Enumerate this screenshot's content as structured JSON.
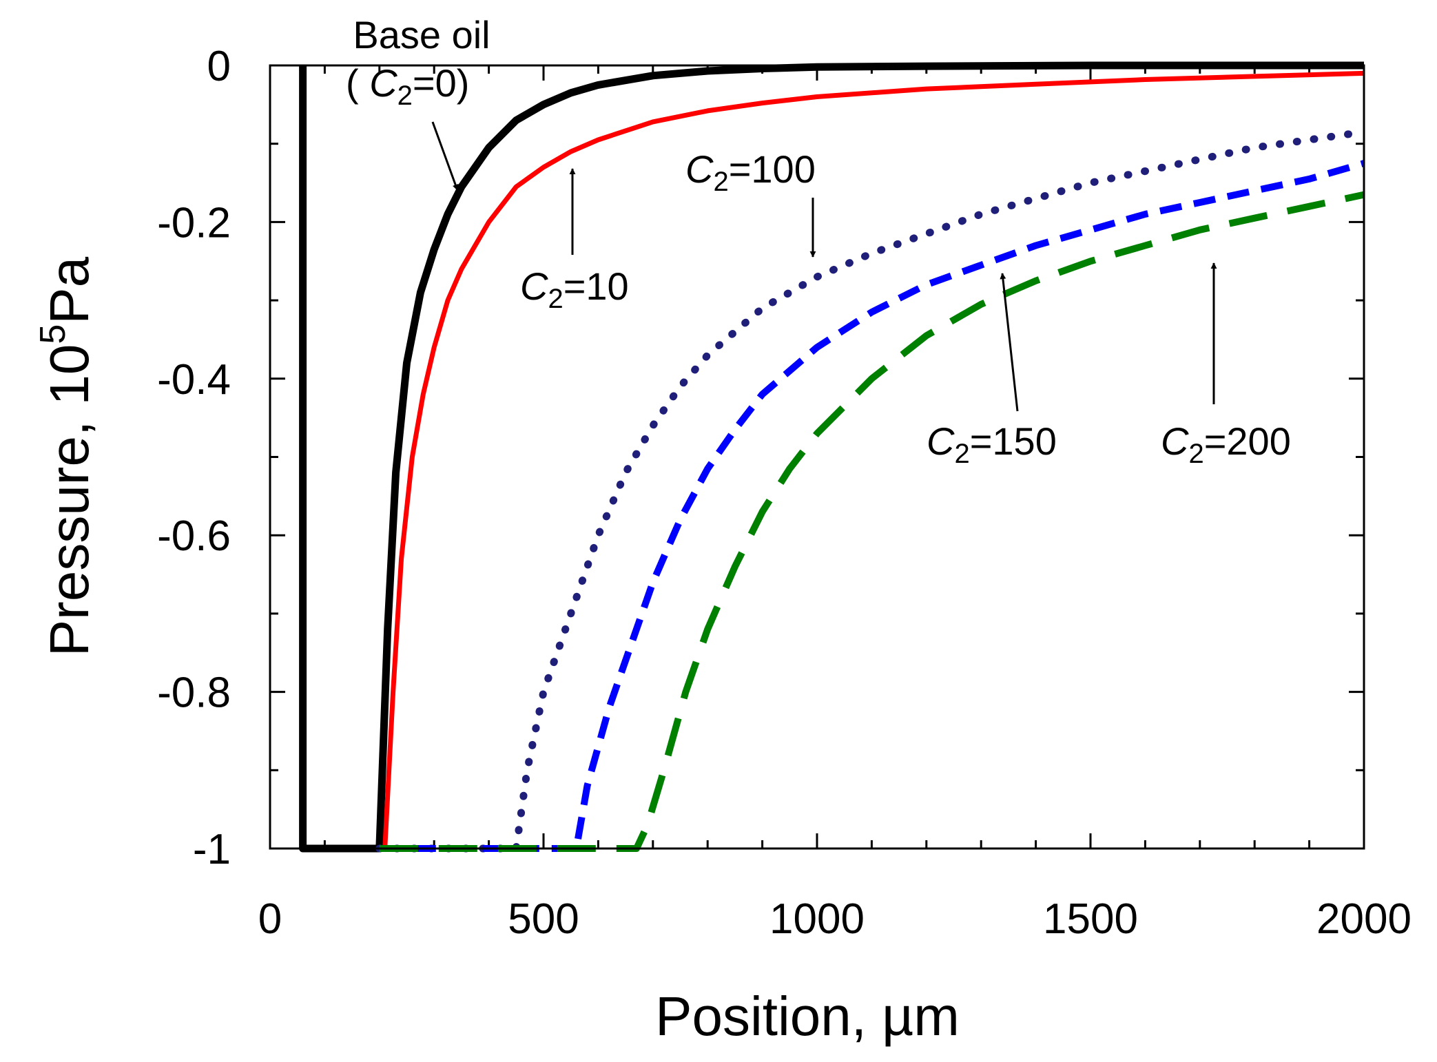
{
  "chart_data": {
    "type": "line",
    "title": "",
    "xlabel": "Position, µm",
    "ylabel_main": "Pressure,  10",
    "ylabel_sup": "5",
    "ylabel_unit": "Pa",
    "xlim": [
      0,
      2000
    ],
    "ylim": [
      -1,
      0
    ],
    "xticks": [
      0,
      500,
      1000,
      1500,
      2000
    ],
    "xtick_labels": [
      "0",
      "500",
      "1000",
      "1500",
      "2000"
    ],
    "yticks": [
      0,
      -0.2,
      -0.4,
      -0.6,
      -0.8,
      -1
    ],
    "ytick_labels": [
      "0",
      "-0.2",
      "-0.4",
      "-0.6",
      "-0.8",
      "-1"
    ],
    "grid": false,
    "series": [
      {
        "name": "Base oil (C2=0)",
        "color": "#000000",
        "style": "solid",
        "points": [
          [
            60,
            0
          ],
          [
            60,
            -1
          ],
          [
            200,
            -1
          ],
          [
            215,
            -0.72
          ],
          [
            230,
            -0.52
          ],
          [
            250,
            -0.38
          ],
          [
            275,
            -0.29
          ],
          [
            300,
            -0.235
          ],
          [
            325,
            -0.19
          ],
          [
            350,
            -0.155
          ],
          [
            400,
            -0.105
          ],
          [
            450,
            -0.07
          ],
          [
            500,
            -0.05
          ],
          [
            550,
            -0.035
          ],
          [
            600,
            -0.025
          ],
          [
            700,
            -0.013
          ],
          [
            800,
            -0.007
          ],
          [
            900,
            -0.004
          ],
          [
            1000,
            -0.002
          ],
          [
            1200,
            -0.001
          ],
          [
            1500,
            0
          ],
          [
            2000,
            0
          ]
        ]
      },
      {
        "name": "C2=10",
        "color": "#ff0000",
        "style": "solid",
        "points": [
          [
            210,
            -1
          ],
          [
            225,
            -0.8
          ],
          [
            240,
            -0.63
          ],
          [
            260,
            -0.5
          ],
          [
            280,
            -0.42
          ],
          [
            300,
            -0.36
          ],
          [
            325,
            -0.3
          ],
          [
            350,
            -0.26
          ],
          [
            400,
            -0.2
          ],
          [
            450,
            -0.155
          ],
          [
            500,
            -0.13
          ],
          [
            550,
            -0.11
          ],
          [
            600,
            -0.095
          ],
          [
            700,
            -0.072
          ],
          [
            800,
            -0.058
          ],
          [
            900,
            -0.048
          ],
          [
            1000,
            -0.04
          ],
          [
            1200,
            -0.03
          ],
          [
            1400,
            -0.024
          ],
          [
            1600,
            -0.018
          ],
          [
            1800,
            -0.014
          ],
          [
            2000,
            -0.01
          ]
        ]
      },
      {
        "name": "C2=100",
        "color": "#1f1f7a",
        "style": "dotted",
        "points": [
          [
            200,
            -1
          ],
          [
            450,
            -1
          ],
          [
            470,
            -0.9
          ],
          [
            500,
            -0.8
          ],
          [
            550,
            -0.7
          ],
          [
            600,
            -0.6
          ],
          [
            650,
            -0.52
          ],
          [
            700,
            -0.46
          ],
          [
            750,
            -0.41
          ],
          [
            800,
            -0.37
          ],
          [
            850,
            -0.34
          ],
          [
            900,
            -0.31
          ],
          [
            1000,
            -0.27
          ],
          [
            1100,
            -0.24
          ],
          [
            1200,
            -0.215
          ],
          [
            1300,
            -0.19
          ],
          [
            1400,
            -0.17
          ],
          [
            1500,
            -0.15
          ],
          [
            1600,
            -0.135
          ],
          [
            1700,
            -0.12
          ],
          [
            1800,
            -0.105
          ],
          [
            1900,
            -0.095
          ],
          [
            2000,
            -0.085
          ]
        ]
      },
      {
        "name": "C2=150",
        "color": "#0000ff",
        "style": "dashed",
        "points": [
          [
            200,
            -1
          ],
          [
            560,
            -1
          ],
          [
            580,
            -0.92
          ],
          [
            620,
            -0.82
          ],
          [
            660,
            -0.74
          ],
          [
            700,
            -0.66
          ],
          [
            750,
            -0.58
          ],
          [
            800,
            -0.515
          ],
          [
            850,
            -0.465
          ],
          [
            900,
            -0.42
          ],
          [
            1000,
            -0.36
          ],
          [
            1100,
            -0.315
          ],
          [
            1200,
            -0.28
          ],
          [
            1300,
            -0.255
          ],
          [
            1400,
            -0.23
          ],
          [
            1500,
            -0.21
          ],
          [
            1600,
            -0.19
          ],
          [
            1700,
            -0.175
          ],
          [
            1800,
            -0.16
          ],
          [
            1900,
            -0.145
          ],
          [
            2000,
            -0.125
          ]
        ]
      },
      {
        "name": "C2=200",
        "color": "#008000",
        "style": "longdash",
        "points": [
          [
            200,
            -1
          ],
          [
            670,
            -1
          ],
          [
            690,
            -0.97
          ],
          [
            720,
            -0.9
          ],
          [
            760,
            -0.8
          ],
          [
            800,
            -0.72
          ],
          [
            850,
            -0.64
          ],
          [
            900,
            -0.57
          ],
          [
            950,
            -0.515
          ],
          [
            1000,
            -0.47
          ],
          [
            1100,
            -0.4
          ],
          [
            1200,
            -0.345
          ],
          [
            1300,
            -0.305
          ],
          [
            1400,
            -0.275
          ],
          [
            1500,
            -0.25
          ],
          [
            1600,
            -0.23
          ],
          [
            1700,
            -0.21
          ],
          [
            1800,
            -0.195
          ],
          [
            1900,
            -0.18
          ],
          [
            2000,
            -0.165
          ]
        ]
      }
    ],
    "annotations": [
      {
        "id": "base-oil",
        "line1": "Base oil",
        "line2_prefix": "( ",
        "var": "C",
        "sub": "2",
        "suffix": "=0)"
      },
      {
        "id": "c10",
        "var": "C",
        "sub": "2",
        "suffix": "=10"
      },
      {
        "id": "c100",
        "var": "C",
        "sub": "2",
        "suffix": "=100"
      },
      {
        "id": "c150",
        "var": "C",
        "sub": "2",
        "suffix": "=150"
      },
      {
        "id": "c200",
        "var": "C",
        "sub": "2",
        "suffix": "=200"
      }
    ]
  }
}
